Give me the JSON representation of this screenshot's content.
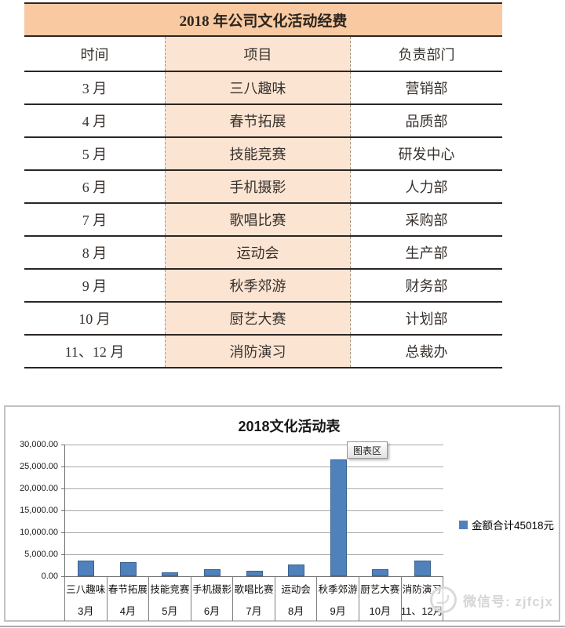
{
  "table": {
    "title": "2018 年公司文化活动经费",
    "columns": [
      "时间",
      "项目",
      "负责部门"
    ],
    "rows": [
      {
        "time": "3 月",
        "project": "三八趣味",
        "department": "营销部"
      },
      {
        "time": "4 月",
        "project": "春节拓展",
        "department": "品质部"
      },
      {
        "time": "5 月",
        "project": "技能竞赛",
        "department": "研发中心"
      },
      {
        "time": "6 月",
        "project": "手机摄影",
        "department": "人力部"
      },
      {
        "time": "7 月",
        "project": "歌唱比赛",
        "department": "采购部"
      },
      {
        "time": "8 月",
        "project": "运动会",
        "department": "生产部"
      },
      {
        "time": "9 月",
        "project": "秋季郊游",
        "department": "财务部"
      },
      {
        "time": "10 月",
        "project": "厨艺大赛",
        "department": "计划部"
      },
      {
        "time": "11、12 月",
        "project": "消防演习",
        "department": "总裁办"
      }
    ],
    "colors": {
      "title_bg": "#f9c9a1",
      "project_col_bg": "#fce4d2",
      "rule": "#2a2624"
    }
  },
  "chart_data": {
    "type": "bar",
    "title": "2018文化活动表",
    "categories": [
      "三八趣味",
      "春节拓展",
      "技能竞赛",
      "手机摄影",
      "歌唱比赛",
      "运动会",
      "秋季郊游",
      "厨艺大赛",
      "消防演习"
    ],
    "month_labels": [
      "3月",
      "4月",
      "5月",
      "6月",
      "7月",
      "8月",
      "9月",
      "10月",
      "11、12月"
    ],
    "series": [
      {
        "name": "金额合计45018元",
        "values": [
          3500,
          3300,
          900,
          1650,
          1250,
          2600,
          26600,
          1600,
          3618
        ]
      }
    ],
    "total": 45018,
    "ylim": [
      0,
      30000
    ],
    "ytick_labels": [
      "0.00",
      "5,000.00",
      "10,000.00",
      "15,000.00",
      "20,000.00",
      "25,000.00",
      "30,000.00"
    ],
    "grid": true,
    "legend_position": "right",
    "legend_label": "金额合计45018元",
    "bar_color": "#4f81bd",
    "bar_border_color": "#3a618f",
    "tooltip": "图表区"
  },
  "watermark": {
    "text": "微信号: zjfcjx"
  }
}
